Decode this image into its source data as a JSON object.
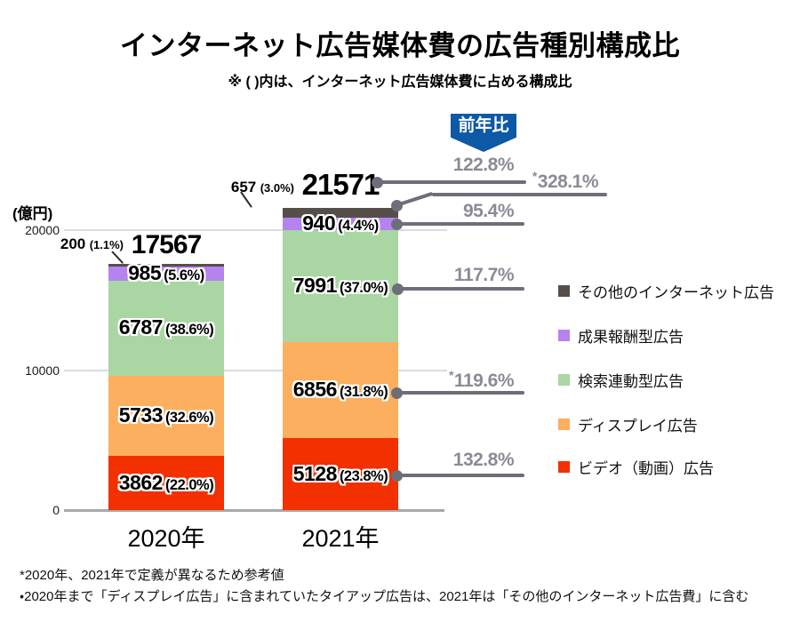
{
  "header": {
    "title": "インターネット広告媒体費の広告種別構成比",
    "subtitle": "※ ( )内は、インターネット広告媒体費に占める構成比"
  },
  "badge_label": "前年比",
  "y_axis": {
    "unit": "(億円)",
    "ticks": [
      0,
      10000,
      20000
    ]
  },
  "chart_data": {
    "type": "bar",
    "stacked": true,
    "title": "インターネット広告媒体費の広告種別構成比",
    "ylabel": "億円",
    "ylim": [
      0,
      21600
    ],
    "grid": true,
    "legend_position": "right",
    "categories": [
      "2020年",
      "2021年"
    ],
    "totals": [
      17567,
      21571
    ],
    "series": [
      {
        "name": "ビデオ（動画）広告",
        "color": "#f23000",
        "values": [
          3862,
          5128
        ],
        "pct_labels": [
          "(22.0%)",
          "(23.8%)"
        ],
        "label_placement": "inside"
      },
      {
        "name": "ディスプレイ広告",
        "color": "#fbaf5f",
        "values": [
          5733,
          6856
        ],
        "pct_labels": [
          "(32.6%)",
          "(31.8%)"
        ],
        "label_placement": "inside"
      },
      {
        "name": "検索連動型広告",
        "color": "#a9d6a2",
        "values": [
          6787,
          7991
        ],
        "pct_labels": [
          "(38.6%)",
          "(37.0%)"
        ],
        "label_placement": "inside"
      },
      {
        "name": "成果報酬型広告",
        "color": "#b583ee",
        "values": [
          985,
          940
        ],
        "pct_labels": [
          "(5.6%)",
          "(4.4%)"
        ],
        "label_placement": "inside"
      },
      {
        "name": "その他のインターネット広告",
        "color": "#564f49",
        "values": [
          200,
          657
        ],
        "pct_labels": [
          "(1.1%)",
          "(3.0%)"
        ],
        "label_placement": "outside"
      }
    ],
    "yoy": [
      {
        "label": "122.8%",
        "reference_note": false,
        "applies_to": "合計"
      },
      {
        "label": "328.1%",
        "reference_note": true,
        "applies_to": "その他のインターネット広告"
      },
      {
        "label": "95.4%",
        "reference_note": false,
        "applies_to": "成果報酬型広告"
      },
      {
        "label": "117.7%",
        "reference_note": false,
        "applies_to": "検索連動型広告"
      },
      {
        "label": "119.6%",
        "reference_note": true,
        "applies_to": "ディスプレイ広告"
      },
      {
        "label": "132.8%",
        "reference_note": false,
        "applies_to": "ビデオ（動画）広告"
      }
    ]
  },
  "footnotes": [
    "*2020年、2021年で定義が異なるため参考値",
    "・2020年まで「ディスプレイ広告」に含まれていたタイアップ広告は、2021年は「その他のインターネット広告費」に含む"
  ]
}
